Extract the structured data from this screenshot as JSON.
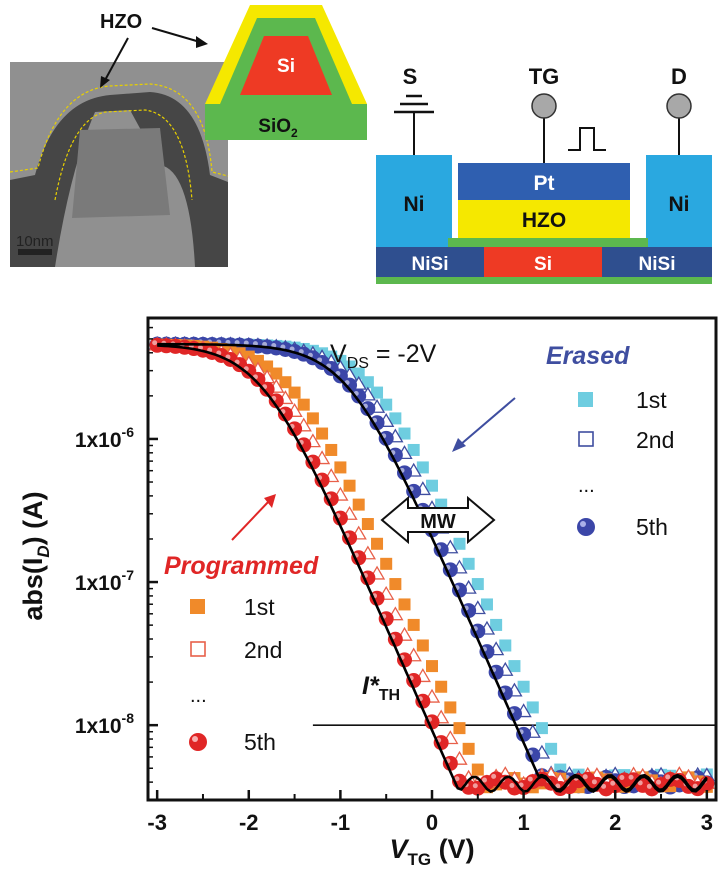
{
  "tem": {
    "hzo_label": "HZO",
    "scale_bar": "10nm",
    "cross_section": {
      "si": "Si",
      "oxide": "SiO",
      "oxide_sub": "2"
    }
  },
  "device": {
    "source": "S",
    "gate": "TG",
    "drain": "D",
    "left_contact": "Ni",
    "right_contact": "Ni",
    "gate_metal": "Pt",
    "ferroelectric": "HZO",
    "channel_left": "NiSi",
    "channel": "Si",
    "channel_right": "NiSi"
  },
  "chart_data": {
    "type": "scatter",
    "xlabel": "V",
    "xlabel_sub": "TG",
    "xlabel_unit": " (V)",
    "ylabel": "abs(I",
    "ylabel_sub": "D",
    "ylabel_unit": ") (A)",
    "yscale": "log",
    "xlim": [
      -3.1,
      3.1
    ],
    "ylim": [
      3e-09,
      7e-06
    ],
    "xticks": [
      "-3",
      "-2",
      "-1",
      "0",
      "1",
      "2",
      "3"
    ],
    "yticks": [
      "1x10",
      "1x10",
      "1x10"
    ],
    "ytick_exponents": [
      "-6",
      "-7",
      "-8"
    ],
    "ytick_values": [
      1e-06,
      1e-07,
      1e-08
    ],
    "threshold": {
      "label": "I*",
      "label_sub": "TH",
      "value": 1e-08,
      "x_start": -1.3
    },
    "vds": {
      "text": "V",
      "sub": "DS",
      "value": " = -2V"
    },
    "memory_window_label": "MW",
    "erased_title": "Erased",
    "programmed_title": "Programmed",
    "legend_ellipsis": "...",
    "colors": {
      "erased_1st": "#6ecde0",
      "erased_2nd": "#3f4ea0",
      "erased_5th": "#3b46a8",
      "prog_1st": "#f08a2a",
      "prog_2nd": "#e8604a",
      "prog_5th": "#e02626",
      "fit": "#000000",
      "erased_text": "#3f4ea0",
      "prog_text": "#e02626"
    },
    "series": [
      {
        "name": "1st",
        "group": "Erased",
        "vth": 1.45,
        "ileak": 4.2e-09
      },
      {
        "name": "2nd",
        "group": "Erased",
        "vth": 1.33,
        "ileak": 4.2e-09
      },
      {
        "name": "5th",
        "group": "Erased",
        "vth": 1.22,
        "ileak": 4e-09
      },
      {
        "name": "1st",
        "group": "Programmed",
        "vth": 0.55,
        "ileak": 4e-09
      },
      {
        "name": "2nd",
        "group": "Programmed",
        "vth": 0.4,
        "ileak": 4.2e-09
      },
      {
        "name": "5th",
        "group": "Programmed",
        "vth": 0.28,
        "ileak": 3.9e-09
      }
    ],
    "model": {
      "imax_fraction": 1.0,
      "isat": 4.6e-06,
      "slope_decades_per_volt": 1.45
    }
  }
}
